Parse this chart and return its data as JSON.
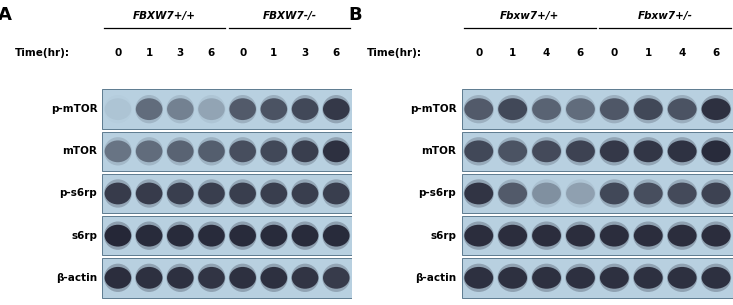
{
  "panel_A": {
    "label": "A",
    "group1_label": "FBXW7+/+",
    "group2_label": "FBXW7-/-",
    "time_label": "Time(hr):",
    "time_points": [
      "0",
      "1",
      "3",
      "6",
      "0",
      "1",
      "3",
      "6"
    ],
    "row_labels": [
      "p-mTOR",
      "mTOR",
      "p-s6rp",
      "s6rp",
      "β-actin"
    ],
    "band_rows": {
      "p-mTOR": [
        0.05,
        0.5,
        0.38,
        0.2,
        0.6,
        0.65,
        0.72,
        0.82
      ],
      "mTOR": [
        0.45,
        0.5,
        0.55,
        0.58,
        0.68,
        0.72,
        0.78,
        0.88
      ],
      "p-s6rp": [
        0.8,
        0.8,
        0.78,
        0.78,
        0.78,
        0.78,
        0.78,
        0.78
      ],
      "s6rp": [
        0.95,
        0.92,
        0.92,
        0.92,
        0.92,
        0.92,
        0.92,
        0.92
      ],
      "b-actin": [
        0.9,
        0.88,
        0.88,
        0.85,
        0.88,
        0.88,
        0.85,
        0.8
      ]
    }
  },
  "panel_B": {
    "label": "B",
    "group1_label": "Fbxw7+/+",
    "group2_label": "Fbxw7+/-",
    "time_label": "Time(hr):",
    "time_points": [
      "0",
      "1",
      "4",
      "6",
      "0",
      "1",
      "4",
      "6"
    ],
    "row_labels": [
      "p-mTOR",
      "mTOR",
      "p-s6rp",
      "s6rp",
      "β-actin"
    ],
    "band_rows": {
      "p-mTOR": [
        0.6,
        0.72,
        0.55,
        0.5,
        0.62,
        0.72,
        0.65,
        0.88
      ],
      "mTOR": [
        0.72,
        0.65,
        0.7,
        0.75,
        0.82,
        0.84,
        0.87,
        0.92
      ],
      "p-s6rp": [
        0.85,
        0.6,
        0.3,
        0.22,
        0.72,
        0.68,
        0.7,
        0.75
      ],
      "s6rp": [
        0.9,
        0.9,
        0.9,
        0.9,
        0.9,
        0.9,
        0.9,
        0.9
      ],
      "b-actin": [
        0.88,
        0.88,
        0.88,
        0.88,
        0.88,
        0.88,
        0.88,
        0.88
      ]
    }
  },
  "figure_bg": "#ffffff",
  "blot_bg": "#b8d0e0",
  "band_dark": "#1a1a2a",
  "label_fontsize": 7.5,
  "time_fontsize": 7.5,
  "group_fontsize": 7.5,
  "panel_label_fontsize": 13
}
